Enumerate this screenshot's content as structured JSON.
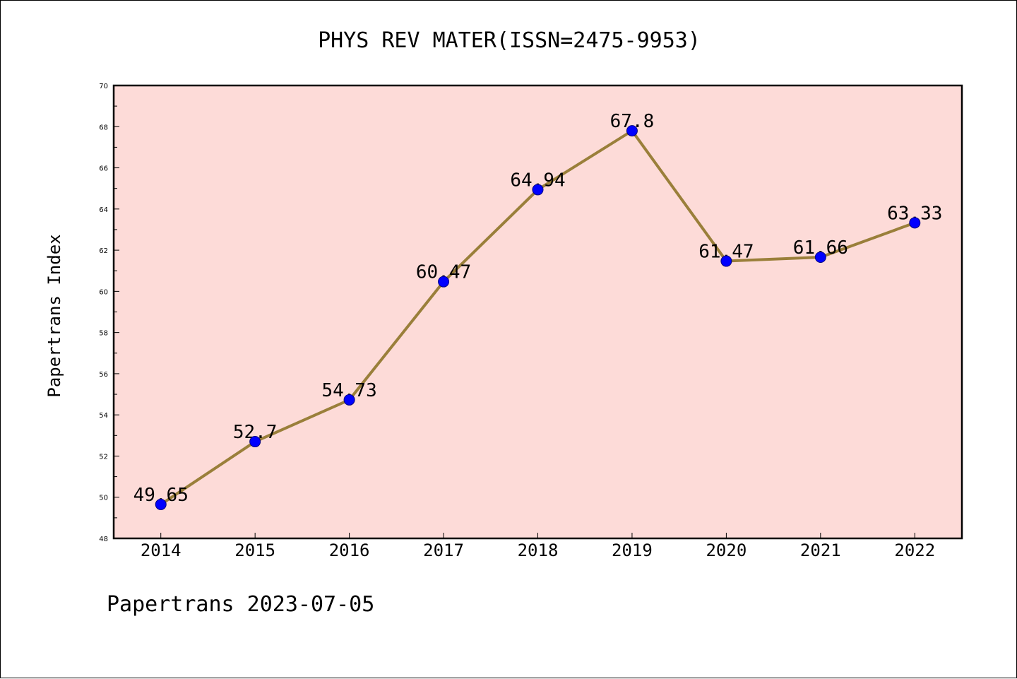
{
  "chart_data": {
    "type": "line",
    "title": "PHYS REV MATER(ISSN=2475-9953)",
    "xlabel": "",
    "ylabel": "Papertrans Index",
    "categories": [
      "2014",
      "2015",
      "2016",
      "2017",
      "2018",
      "2019",
      "2020",
      "2021",
      "2022"
    ],
    "series": [
      {
        "values": [
          49.65,
          52.7,
          54.73,
          60.47,
          64.94,
          67.8,
          61.47,
          61.66,
          63.33
        ],
        "data_labels": [
          "49.65",
          "52.7",
          "54.73",
          "60.47",
          "64.94",
          "67.8",
          "61.47",
          "61.66",
          "63.33"
        ]
      }
    ],
    "ylim": [
      48,
      70
    ],
    "yticks": [
      48,
      50,
      52,
      54,
      56,
      58,
      60,
      62,
      64,
      66,
      68,
      70
    ],
    "grid": false,
    "colors": {
      "plot_background": "#fddbd8",
      "line": "#9a7f3a",
      "marker": "#0000ff"
    }
  },
  "footer": {
    "text": "Papertrans 2023-07-05"
  }
}
